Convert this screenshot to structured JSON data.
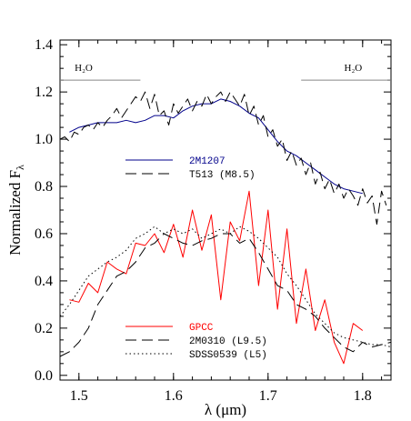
{
  "chart_data": {
    "type": "line",
    "title": "",
    "xlabel": "λ (μm)",
    "ylabel": "Normalized F",
    "ylabel_subscript": "λ",
    "xlim": [
      1.48,
      1.83
    ],
    "ylim": [
      -0.02,
      1.42
    ],
    "x_ticks": [
      {
        "value": 1.5,
        "label": "1.5"
      },
      {
        "value": 1.6,
        "label": "1.6"
      },
      {
        "value": 1.7,
        "label": "1.7"
      },
      {
        "value": 1.8,
        "label": "1.8"
      }
    ],
    "y_ticks": [
      {
        "value": 0.0,
        "label": "0.0"
      },
      {
        "value": 0.2,
        "label": "0.2"
      },
      {
        "value": 0.4,
        "label": "0.4"
      },
      {
        "value": 0.6,
        "label": "0.6"
      },
      {
        "value": 0.8,
        "label": "0.8"
      },
      {
        "value": 1.0,
        "label": "1.0"
      },
      {
        "value": 1.2,
        "label": "1.2"
      },
      {
        "value": 1.4,
        "label": "1.4"
      }
    ],
    "grid": false,
    "annotations": [
      {
        "text": "H₂O",
        "x_range": [
          1.48,
          1.565
        ],
        "y": 1.25,
        "label_x": 1.505
      },
      {
        "text": "H₂O",
        "x_range": [
          1.735,
          1.83
        ],
        "y": 1.25,
        "label_x": 1.79
      }
    ],
    "legends": [
      {
        "position": "upper-middle",
        "entries": [
          {
            "name": "2M1207",
            "color": "#00008b",
            "dash": "solid"
          },
          {
            "name": "T513 (M8.5)",
            "color": "#000000",
            "dash": "longdash"
          }
        ]
      },
      {
        "position": "lower-middle",
        "entries": [
          {
            "name": "GPCC",
            "color": "#ff0000",
            "dash": "solid"
          },
          {
            "name": "2M0310 (L9.5)",
            "color": "#000000",
            "dash": "longdash"
          },
          {
            "name": "SDSS0539 (L5)",
            "color": "#000000",
            "dash": "dotted"
          }
        ]
      }
    ],
    "series": [
      {
        "name": "2M1207",
        "color": "#00008b",
        "dash": "solid",
        "x": [
          1.49,
          1.5,
          1.51,
          1.52,
          1.53,
          1.54,
          1.55,
          1.56,
          1.57,
          1.58,
          1.59,
          1.6,
          1.61,
          1.62,
          1.63,
          1.64,
          1.65,
          1.66,
          1.67,
          1.68,
          1.69,
          1.7,
          1.71,
          1.72,
          1.73,
          1.74,
          1.75,
          1.76,
          1.77,
          1.78,
          1.79,
          1.8
        ],
        "y": [
          1.03,
          1.05,
          1.06,
          1.07,
          1.07,
          1.07,
          1.08,
          1.07,
          1.08,
          1.1,
          1.1,
          1.09,
          1.12,
          1.14,
          1.15,
          1.15,
          1.17,
          1.16,
          1.14,
          1.11,
          1.09,
          1.04,
          0.99,
          0.95,
          0.93,
          0.9,
          0.87,
          0.84,
          0.81,
          0.79,
          0.78,
          0.77
        ]
      },
      {
        "name": "T513 (M8.5)",
        "color": "#000000",
        "dash": "longdash",
        "x": [
          1.48,
          1.485,
          1.49,
          1.495,
          1.5,
          1.505,
          1.51,
          1.515,
          1.52,
          1.525,
          1.53,
          1.535,
          1.54,
          1.545,
          1.55,
          1.555,
          1.56,
          1.565,
          1.57,
          1.575,
          1.58,
          1.585,
          1.59,
          1.595,
          1.6,
          1.605,
          1.61,
          1.615,
          1.62,
          1.625,
          1.63,
          1.635,
          1.64,
          1.645,
          1.65,
          1.655,
          1.66,
          1.665,
          1.67,
          1.675,
          1.68,
          1.685,
          1.69,
          1.695,
          1.7,
          1.705,
          1.71,
          1.715,
          1.72,
          1.725,
          1.73,
          1.735,
          1.74,
          1.745,
          1.75,
          1.755,
          1.76,
          1.765,
          1.77,
          1.775,
          1.78,
          1.785,
          1.79,
          1.795,
          1.8,
          1.805,
          1.81,
          1.815,
          1.82,
          1.825
        ],
        "y": [
          1.0,
          1.01,
          0.99,
          1.03,
          1.02,
          1.05,
          1.06,
          1.04,
          1.07,
          1.05,
          1.08,
          1.1,
          1.13,
          1.09,
          1.12,
          1.15,
          1.18,
          1.16,
          1.2,
          1.13,
          1.19,
          1.1,
          1.12,
          1.06,
          1.15,
          1.11,
          1.14,
          1.17,
          1.12,
          1.16,
          1.14,
          1.19,
          1.15,
          1.18,
          1.2,
          1.16,
          1.2,
          1.17,
          1.14,
          1.19,
          1.1,
          1.14,
          1.06,
          1.1,
          1.01,
          1.04,
          0.97,
          1.0,
          0.91,
          0.95,
          0.89,
          0.92,
          0.85,
          0.9,
          0.81,
          0.86,
          0.79,
          0.83,
          0.77,
          0.81,
          0.75,
          0.79,
          0.76,
          0.72,
          0.79,
          0.73,
          0.76,
          0.64,
          0.78,
          0.72
        ]
      },
      {
        "name": "GPCC",
        "color": "#ff0000",
        "dash": "solid",
        "x": [
          1.49,
          1.5,
          1.51,
          1.52,
          1.53,
          1.54,
          1.55,
          1.56,
          1.57,
          1.58,
          1.59,
          1.6,
          1.61,
          1.62,
          1.63,
          1.64,
          1.65,
          1.66,
          1.67,
          1.68,
          1.69,
          1.7,
          1.71,
          1.72,
          1.73,
          1.74,
          1.75,
          1.76,
          1.77,
          1.78,
          1.79,
          1.8
        ],
        "y": [
          0.32,
          0.31,
          0.39,
          0.35,
          0.48,
          0.45,
          0.43,
          0.56,
          0.55,
          0.6,
          0.52,
          0.64,
          0.5,
          0.7,
          0.53,
          0.68,
          0.32,
          0.65,
          0.57,
          0.78,
          0.38,
          0.7,
          0.28,
          0.62,
          0.22,
          0.45,
          0.19,
          0.32,
          0.14,
          0.05,
          0.22,
          0.19
        ]
      },
      {
        "name": "2M0310 (L9.5)",
        "color": "#000000",
        "dash": "longdash",
        "x": [
          1.48,
          1.49,
          1.5,
          1.51,
          1.52,
          1.53,
          1.54,
          1.55,
          1.56,
          1.57,
          1.58,
          1.59,
          1.6,
          1.61,
          1.62,
          1.63,
          1.64,
          1.65,
          1.66,
          1.67,
          1.68,
          1.69,
          1.7,
          1.71,
          1.72,
          1.73,
          1.74,
          1.75,
          1.76,
          1.77,
          1.78,
          1.79,
          1.8,
          1.81,
          1.82,
          1.83
        ],
        "y": [
          0.08,
          0.1,
          0.14,
          0.2,
          0.3,
          0.36,
          0.42,
          0.44,
          0.48,
          0.54,
          0.56,
          0.6,
          0.58,
          0.56,
          0.55,
          0.57,
          0.58,
          0.6,
          0.6,
          0.56,
          0.58,
          0.52,
          0.45,
          0.38,
          0.36,
          0.3,
          0.28,
          0.25,
          0.2,
          0.16,
          0.12,
          0.1,
          0.14,
          0.12,
          0.13,
          0.14
        ]
      },
      {
        "name": "SDSS0539 (L5)",
        "color": "#000000",
        "dash": "dotted",
        "x": [
          1.48,
          1.49,
          1.5,
          1.51,
          1.52,
          1.53,
          1.54,
          1.55,
          1.56,
          1.57,
          1.58,
          1.59,
          1.6,
          1.61,
          1.62,
          1.63,
          1.64,
          1.65,
          1.66,
          1.67,
          1.68,
          1.69,
          1.7,
          1.71,
          1.72,
          1.73,
          1.74,
          1.75,
          1.76,
          1.77,
          1.78,
          1.79,
          1.8,
          1.81,
          1.82,
          1.83
        ],
        "y": [
          0.25,
          0.3,
          0.36,
          0.42,
          0.45,
          0.48,
          0.5,
          0.53,
          0.58,
          0.6,
          0.63,
          0.6,
          0.62,
          0.6,
          0.62,
          0.58,
          0.6,
          0.62,
          0.6,
          0.63,
          0.61,
          0.58,
          0.54,
          0.5,
          0.43,
          0.38,
          0.32,
          0.26,
          0.22,
          0.18,
          0.16,
          0.15,
          0.14,
          0.13,
          0.13,
          0.12
        ]
      }
    ]
  }
}
